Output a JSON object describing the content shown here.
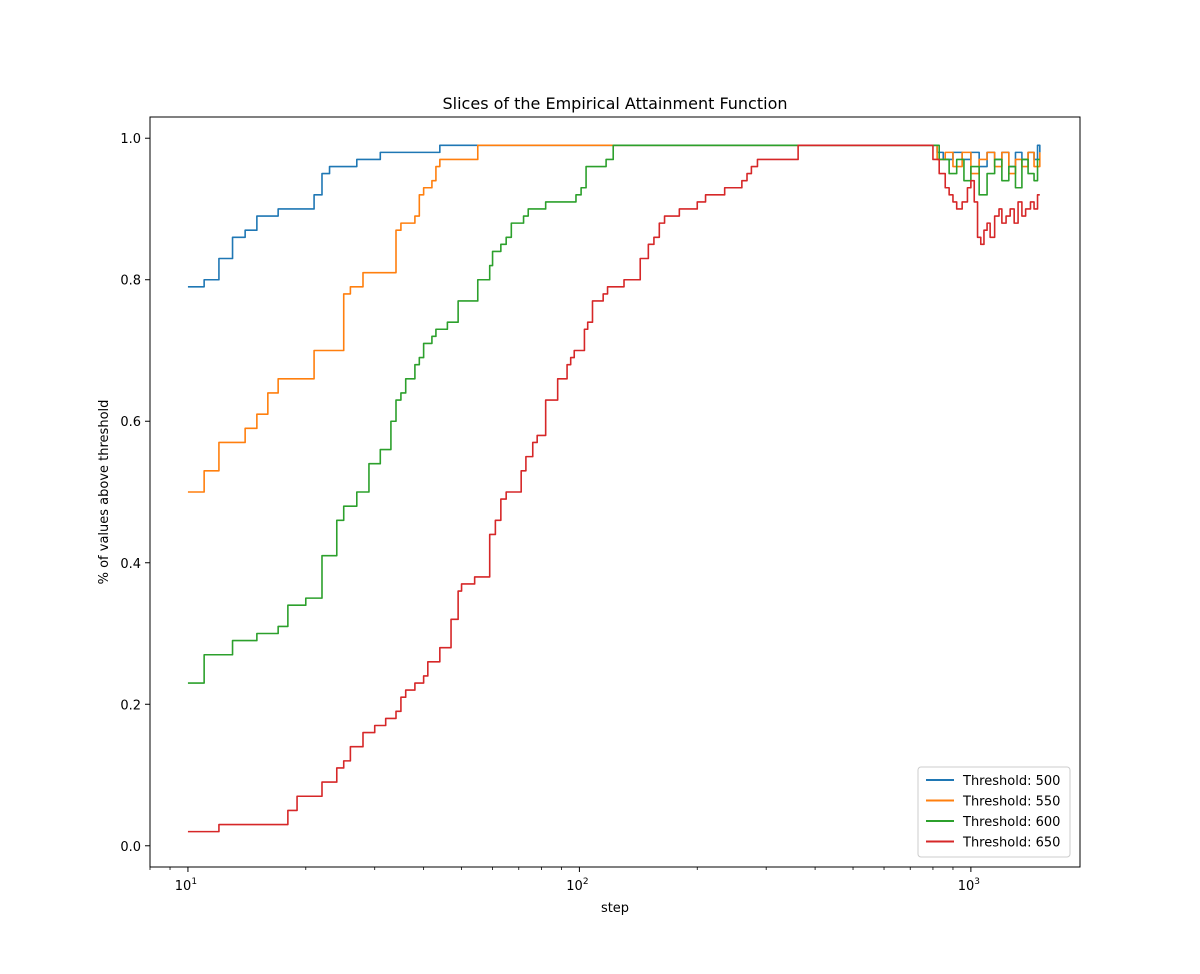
{
  "chart_data": {
    "type": "line",
    "title": "Slices of the Empirical Attainment Function",
    "xlabel": "step",
    "ylabel": "% of values above threshold",
    "xscale": "log",
    "xlim": [
      8,
      1900
    ],
    "ylim": [
      -0.03,
      1.03
    ],
    "x_ticks": [
      {
        "value": 10,
        "base": "10",
        "exp": "1"
      },
      {
        "value": 100,
        "base": "10",
        "exp": "2"
      },
      {
        "value": 1000,
        "base": "10",
        "exp": "3"
      }
    ],
    "y_ticks": [
      {
        "value": 0.0,
        "label": "0.0"
      },
      {
        "value": 0.2,
        "label": "0.2"
      },
      {
        "value": 0.4,
        "label": "0.4"
      },
      {
        "value": 0.6,
        "label": "0.6"
      },
      {
        "value": 0.8,
        "label": "0.8"
      },
      {
        "value": 1.0,
        "label": "1.0"
      }
    ],
    "grid": false,
    "legend_position": "lower-right",
    "series": [
      {
        "name": "Threshold: 500",
        "color": "#1f77b4",
        "points": [
          [
            10,
            0.79
          ],
          [
            11,
            0.8
          ],
          [
            12,
            0.83
          ],
          [
            13,
            0.86
          ],
          [
            14,
            0.87
          ],
          [
            15,
            0.89
          ],
          [
            16,
            0.89
          ],
          [
            17,
            0.9
          ],
          [
            19,
            0.9
          ],
          [
            21,
            0.92
          ],
          [
            22,
            0.95
          ],
          [
            23,
            0.96
          ],
          [
            26,
            0.96
          ],
          [
            27,
            0.97
          ],
          [
            30,
            0.97
          ],
          [
            31,
            0.98
          ],
          [
            43,
            0.98
          ],
          [
            44,
            0.99
          ],
          [
            800,
            0.99
          ],
          [
            820,
            0.98
          ],
          [
            850,
            0.97
          ],
          [
            900,
            0.98
          ],
          [
            950,
            0.97
          ],
          [
            1000,
            0.98
          ],
          [
            1050,
            0.96
          ],
          [
            1100,
            0.98
          ],
          [
            1150,
            0.97
          ],
          [
            1200,
            0.98
          ],
          [
            1250,
            0.96
          ],
          [
            1300,
            0.98
          ],
          [
            1350,
            0.97
          ],
          [
            1400,
            0.98
          ],
          [
            1450,
            0.97
          ],
          [
            1480,
            0.99
          ],
          [
            1500,
            0.98
          ]
        ]
      },
      {
        "name": "Threshold: 550",
        "color": "#ff7f0e",
        "points": [
          [
            10,
            0.5
          ],
          [
            11,
            0.53
          ],
          [
            12,
            0.57
          ],
          [
            14,
            0.59
          ],
          [
            15,
            0.61
          ],
          [
            16,
            0.64
          ],
          [
            17,
            0.66
          ],
          [
            21,
            0.7
          ],
          [
            25,
            0.78
          ],
          [
            26,
            0.79
          ],
          [
            27,
            0.79
          ],
          [
            28,
            0.81
          ],
          [
            31,
            0.81
          ],
          [
            34,
            0.87
          ],
          [
            35,
            0.88
          ],
          [
            37,
            0.88
          ],
          [
            38,
            0.89
          ],
          [
            39,
            0.92
          ],
          [
            40,
            0.93
          ],
          [
            41,
            0.93
          ],
          [
            42,
            0.94
          ],
          [
            43,
            0.96
          ],
          [
            44,
            0.97
          ],
          [
            54,
            0.97
          ],
          [
            55,
            0.99
          ],
          [
            780,
            0.99
          ],
          [
            820,
            0.97
          ],
          [
            860,
            0.98
          ],
          [
            900,
            0.96
          ],
          [
            950,
            0.98
          ],
          [
            1000,
            0.95
          ],
          [
            1050,
            0.97
          ],
          [
            1100,
            0.98
          ],
          [
            1150,
            0.96
          ],
          [
            1200,
            0.98
          ],
          [
            1250,
            0.95
          ],
          [
            1300,
            0.97
          ],
          [
            1350,
            0.96
          ],
          [
            1400,
            0.98
          ],
          [
            1450,
            0.96
          ],
          [
            1500,
            0.98
          ]
        ]
      },
      {
        "name": "Threshold: 600",
        "color": "#2ca02c",
        "points": [
          [
            10,
            0.23
          ],
          [
            11,
            0.27
          ],
          [
            13,
            0.29
          ],
          [
            14,
            0.29
          ],
          [
            15,
            0.3
          ],
          [
            16,
            0.3
          ],
          [
            17,
            0.31
          ],
          [
            18,
            0.34
          ],
          [
            19,
            0.34
          ],
          [
            20,
            0.35
          ],
          [
            22,
            0.41
          ],
          [
            23,
            0.41
          ],
          [
            24,
            0.46
          ],
          [
            25,
            0.48
          ],
          [
            27,
            0.5
          ],
          [
            29,
            0.54
          ],
          [
            31,
            0.56
          ],
          [
            33,
            0.6
          ],
          [
            34,
            0.63
          ],
          [
            35,
            0.64
          ],
          [
            36,
            0.66
          ],
          [
            37,
            0.66
          ],
          [
            38,
            0.68
          ],
          [
            39,
            0.69
          ],
          [
            40,
            0.71
          ],
          [
            41,
            0.71
          ],
          [
            42,
            0.72
          ],
          [
            43,
            0.73
          ],
          [
            45,
            0.73
          ],
          [
            46,
            0.74
          ],
          [
            48,
            0.74
          ],
          [
            49,
            0.77
          ],
          [
            52,
            0.77
          ],
          [
            55,
            0.8
          ],
          [
            57,
            0.8
          ],
          [
            59,
            0.82
          ],
          [
            60,
            0.84
          ],
          [
            62,
            0.84
          ],
          [
            63,
            0.85
          ],
          [
            65,
            0.86
          ],
          [
            67,
            0.88
          ],
          [
            70,
            0.88
          ],
          [
            72,
            0.89
          ],
          [
            74,
            0.9
          ],
          [
            80,
            0.9
          ],
          [
            82,
            0.91
          ],
          [
            95,
            0.91
          ],
          [
            98,
            0.92
          ],
          [
            101,
            0.93
          ],
          [
            104,
            0.96
          ],
          [
            115,
            0.96
          ],
          [
            117,
            0.97
          ],
          [
            120,
            0.97
          ],
          [
            122,
            0.99
          ],
          [
            780,
            0.99
          ],
          [
            830,
            0.97
          ],
          [
            880,
            0.95
          ],
          [
            920,
            0.97
          ],
          [
            960,
            0.94
          ],
          [
            1000,
            0.96
          ],
          [
            1050,
            0.92
          ],
          [
            1100,
            0.95
          ],
          [
            1150,
            0.97
          ],
          [
            1200,
            0.94
          ],
          [
            1250,
            0.96
          ],
          [
            1300,
            0.93
          ],
          [
            1350,
            0.97
          ],
          [
            1400,
            0.95
          ],
          [
            1450,
            0.94
          ],
          [
            1480,
            0.97
          ],
          [
            1500,
            0.97
          ]
        ]
      },
      {
        "name": "Threshold: 650",
        "color": "#d62728",
        "points": [
          [
            10,
            0.02
          ],
          [
            11,
            0.02
          ],
          [
            12,
            0.03
          ],
          [
            16,
            0.03
          ],
          [
            18,
            0.05
          ],
          [
            19,
            0.07
          ],
          [
            20,
            0.07
          ],
          [
            22,
            0.09
          ],
          [
            23,
            0.09
          ],
          [
            24,
            0.11
          ],
          [
            25,
            0.12
          ],
          [
            26,
            0.14
          ],
          [
            27,
            0.14
          ],
          [
            28,
            0.16
          ],
          [
            29,
            0.16
          ],
          [
            30,
            0.17
          ],
          [
            31,
            0.17
          ],
          [
            32,
            0.18
          ],
          [
            33,
            0.18
          ],
          [
            34,
            0.19
          ],
          [
            35,
            0.21
          ],
          [
            36,
            0.22
          ],
          [
            37,
            0.22
          ],
          [
            38,
            0.23
          ],
          [
            39,
            0.23
          ],
          [
            40,
            0.24
          ],
          [
            41,
            0.26
          ],
          [
            43,
            0.26
          ],
          [
            44,
            0.28
          ],
          [
            46,
            0.28
          ],
          [
            47,
            0.32
          ],
          [
            49,
            0.36
          ],
          [
            50,
            0.37
          ],
          [
            53,
            0.37
          ],
          [
            54,
            0.38
          ],
          [
            56,
            0.38
          ],
          [
            59,
            0.44
          ],
          [
            61,
            0.46
          ],
          [
            63,
            0.49
          ],
          [
            65,
            0.5
          ],
          [
            69,
            0.5
          ],
          [
            71,
            0.53
          ],
          [
            73,
            0.55
          ],
          [
            75,
            0.55
          ],
          [
            76,
            0.57
          ],
          [
            78,
            0.58
          ],
          [
            80,
            0.58
          ],
          [
            82,
            0.63
          ],
          [
            86,
            0.63
          ],
          [
            88,
            0.66
          ],
          [
            91,
            0.66
          ],
          [
            93,
            0.68
          ],
          [
            95,
            0.69
          ],
          [
            97,
            0.7
          ],
          [
            100,
            0.7
          ],
          [
            103,
            0.73
          ],
          [
            105,
            0.74
          ],
          [
            108,
            0.77
          ],
          [
            112,
            0.77
          ],
          [
            115,
            0.78
          ],
          [
            118,
            0.79
          ],
          [
            126,
            0.79
          ],
          [
            130,
            0.8
          ],
          [
            141,
            0.8
          ],
          [
            143,
            0.83
          ],
          [
            150,
            0.85
          ],
          [
            155,
            0.86
          ],
          [
            160,
            0.88
          ],
          [
            165,
            0.89
          ],
          [
            175,
            0.89
          ],
          [
            180,
            0.9
          ],
          [
            195,
            0.9
          ],
          [
            200,
            0.91
          ],
          [
            210,
            0.92
          ],
          [
            230,
            0.92
          ],
          [
            235,
            0.93
          ],
          [
            255,
            0.93
          ],
          [
            260,
            0.94
          ],
          [
            268,
            0.95
          ],
          [
            275,
            0.96
          ],
          [
            285,
            0.97
          ],
          [
            355,
            0.97
          ],
          [
            362,
            0.99
          ],
          [
            760,
            0.99
          ],
          [
            800,
            0.97
          ],
          [
            830,
            0.95
          ],
          [
            860,
            0.93
          ],
          [
            880,
            0.92
          ],
          [
            900,
            0.91
          ],
          [
            920,
            0.9
          ],
          [
            950,
            0.91
          ],
          [
            980,
            0.93
          ],
          [
            1000,
            0.94
          ],
          [
            1020,
            0.91
          ],
          [
            1040,
            0.86
          ],
          [
            1060,
            0.85
          ],
          [
            1080,
            0.87
          ],
          [
            1100,
            0.88
          ],
          [
            1120,
            0.86
          ],
          [
            1150,
            0.89
          ],
          [
            1180,
            0.9
          ],
          [
            1200,
            0.88
          ],
          [
            1230,
            0.89
          ],
          [
            1260,
            0.9
          ],
          [
            1290,
            0.88
          ],
          [
            1320,
            0.91
          ],
          [
            1350,
            0.89
          ],
          [
            1380,
            0.9
          ],
          [
            1420,
            0.91
          ],
          [
            1450,
            0.9
          ],
          [
            1480,
            0.92
          ],
          [
            1500,
            0.92
          ]
        ]
      }
    ]
  }
}
